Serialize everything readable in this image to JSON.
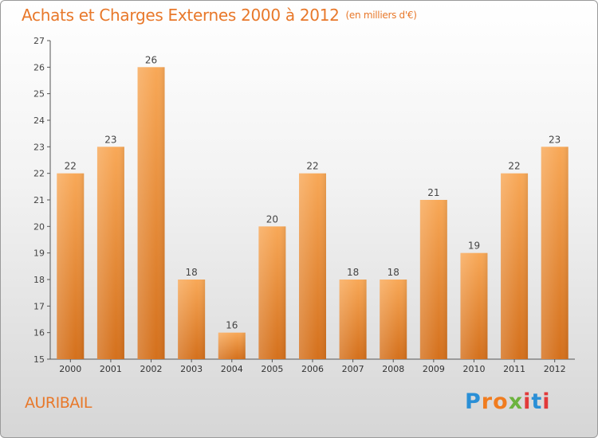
{
  "title": {
    "main": "Achats et Charges Externes 2000 à 2012",
    "unit": "(en milliers d'€)"
  },
  "location": "AURIBAIL",
  "brand": {
    "logo_text": "Proxiti",
    "colors": [
      "#2a8fd6",
      "#f07c1f",
      "#6cb33e",
      "#e23a3a"
    ]
  },
  "colors": {
    "bar_top": "#f8a857",
    "bar_bottom": "#d4701c",
    "title": "#e8782a",
    "axis": "#555555"
  },
  "chart_data": {
    "type": "bar",
    "title": "Achats et Charges Externes 2000 à 2012",
    "xlabel": "",
    "ylabel": "",
    "ylim": [
      15,
      27
    ],
    "yticks": [
      15,
      16,
      17,
      18,
      19,
      20,
      21,
      22,
      23,
      24,
      25,
      26,
      27
    ],
    "grid": false,
    "categories": [
      "2000",
      "2001",
      "2002",
      "2003",
      "2004",
      "2005",
      "2006",
      "2007",
      "2008",
      "2009",
      "2010",
      "2011",
      "2012"
    ],
    "values": [
      22,
      23,
      26,
      18,
      16,
      20,
      22,
      18,
      18,
      21,
      19,
      22,
      23
    ]
  }
}
